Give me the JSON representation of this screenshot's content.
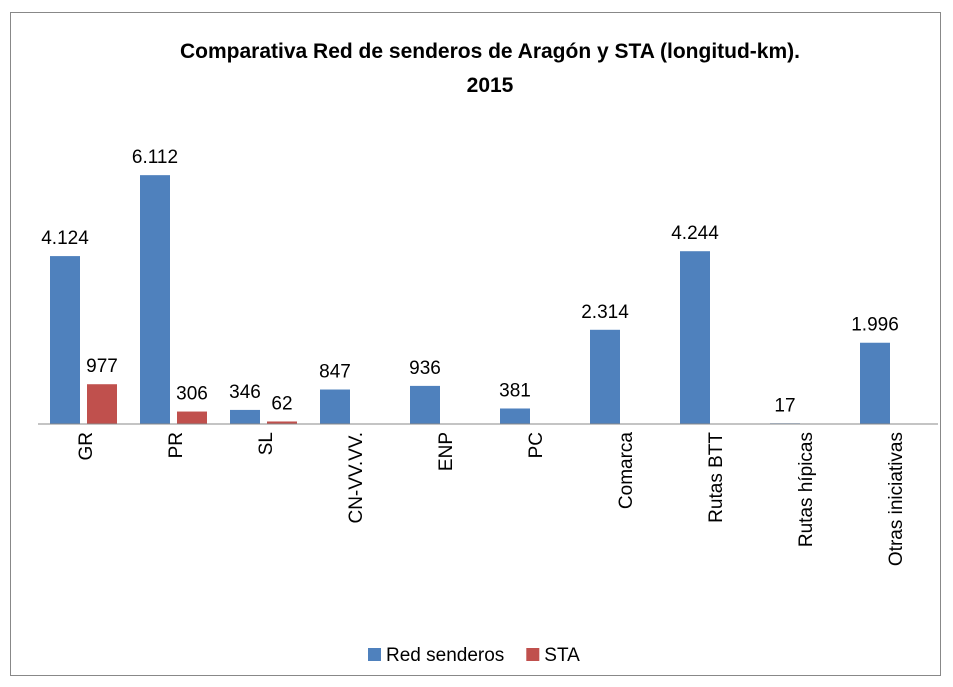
{
  "chart_data": {
    "type": "bar",
    "title": [
      "Comparativa Red de senderos de Aragón y STA (longitud-km).",
      "2015"
    ],
    "categories": [
      "GR",
      "PR",
      "SL",
      "CN-VV.VV.",
      "ENP",
      "PC",
      "Comarca",
      "Rutas BTT",
      "Rutas hípicas",
      "Otras iniciativas"
    ],
    "series": [
      {
        "name": "Red senderos",
        "color": "#4f81bd",
        "values": [
          4124,
          6112,
          346,
          847,
          936,
          381,
          2314,
          4244,
          17,
          1996
        ],
        "value_labels": [
          "4.124",
          "6.112",
          "346",
          "847",
          "936",
          "381",
          "2.314",
          "4.244",
          "17",
          "1.996"
        ]
      },
      {
        "name": "STA",
        "color": "#c0504d",
        "values": [
          977,
          306,
          62,
          null,
          null,
          null,
          null,
          null,
          null,
          null
        ],
        "value_labels": [
          "977",
          "306",
          "62",
          null,
          null,
          null,
          null,
          null,
          null,
          null
        ]
      }
    ],
    "ylim": [
      0,
      7000
    ],
    "legend": "bottom"
  }
}
